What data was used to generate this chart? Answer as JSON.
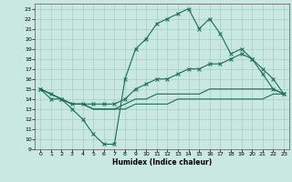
{
  "xlabel": "Humidex (Indice chaleur)",
  "xlim": [
    -0.5,
    23.5
  ],
  "ylim": [
    9,
    23.5
  ],
  "yticks": [
    9,
    10,
    11,
    12,
    13,
    14,
    15,
    16,
    17,
    18,
    19,
    20,
    21,
    22,
    23
  ],
  "xticks": [
    0,
    1,
    2,
    3,
    4,
    5,
    6,
    7,
    8,
    9,
    10,
    11,
    12,
    13,
    14,
    15,
    16,
    17,
    18,
    19,
    20,
    21,
    22,
    23
  ],
  "bg_color": "#c8e8e0",
  "line_color": "#1a6b5a",
  "grid_color": "#a8ccc4",
  "line1_x": [
    0,
    1,
    2,
    3,
    4,
    5,
    6,
    7,
    8,
    9,
    10,
    11,
    12,
    13,
    14,
    15,
    16,
    17,
    18,
    19,
    20,
    21,
    22,
    23
  ],
  "line1_y": [
    15,
    14,
    14,
    13,
    12,
    10.5,
    9.5,
    9.5,
    16,
    19,
    20,
    21.5,
    22,
    22.5,
    23,
    21,
    22,
    20.5,
    18.5,
    19,
    18,
    16.5,
    15,
    14.5
  ],
  "line2_x": [
    0,
    1,
    2,
    3,
    4,
    5,
    6,
    7,
    8,
    9,
    10,
    11,
    12,
    13,
    14,
    15,
    16,
    17,
    18,
    19,
    20,
    21,
    22,
    23
  ],
  "line2_y": [
    15,
    14.5,
    14,
    13.5,
    13.5,
    13.5,
    13.5,
    13.5,
    14,
    15,
    15.5,
    16,
    16,
    16.5,
    17,
    17,
    17.5,
    17.5,
    18,
    18.5,
    18,
    17,
    16,
    14.5
  ],
  "line3_x": [
    0,
    1,
    2,
    3,
    4,
    5,
    6,
    7,
    8,
    9,
    10,
    11,
    12,
    13,
    14,
    15,
    16,
    17,
    18,
    19,
    20,
    21,
    22,
    23
  ],
  "line3_y": [
    15,
    14.5,
    14,
    13.5,
    13.5,
    13,
    13,
    13,
    13.5,
    14,
    14,
    14.5,
    14.5,
    14.5,
    14.5,
    14.5,
    15,
    15,
    15,
    15,
    15,
    15,
    15,
    14.5
  ],
  "line4_x": [
    0,
    1,
    2,
    3,
    4,
    5,
    6,
    7,
    8,
    9,
    10,
    11,
    12,
    13,
    14,
    15,
    16,
    17,
    18,
    19,
    20,
    21,
    22,
    23
  ],
  "line4_y": [
    15,
    14.5,
    14,
    13.5,
    13.5,
    13,
    13,
    13,
    13,
    13.5,
    13.5,
    13.5,
    13.5,
    14,
    14,
    14,
    14,
    14,
    14,
    14,
    14,
    14,
    14.5,
    14.5
  ]
}
